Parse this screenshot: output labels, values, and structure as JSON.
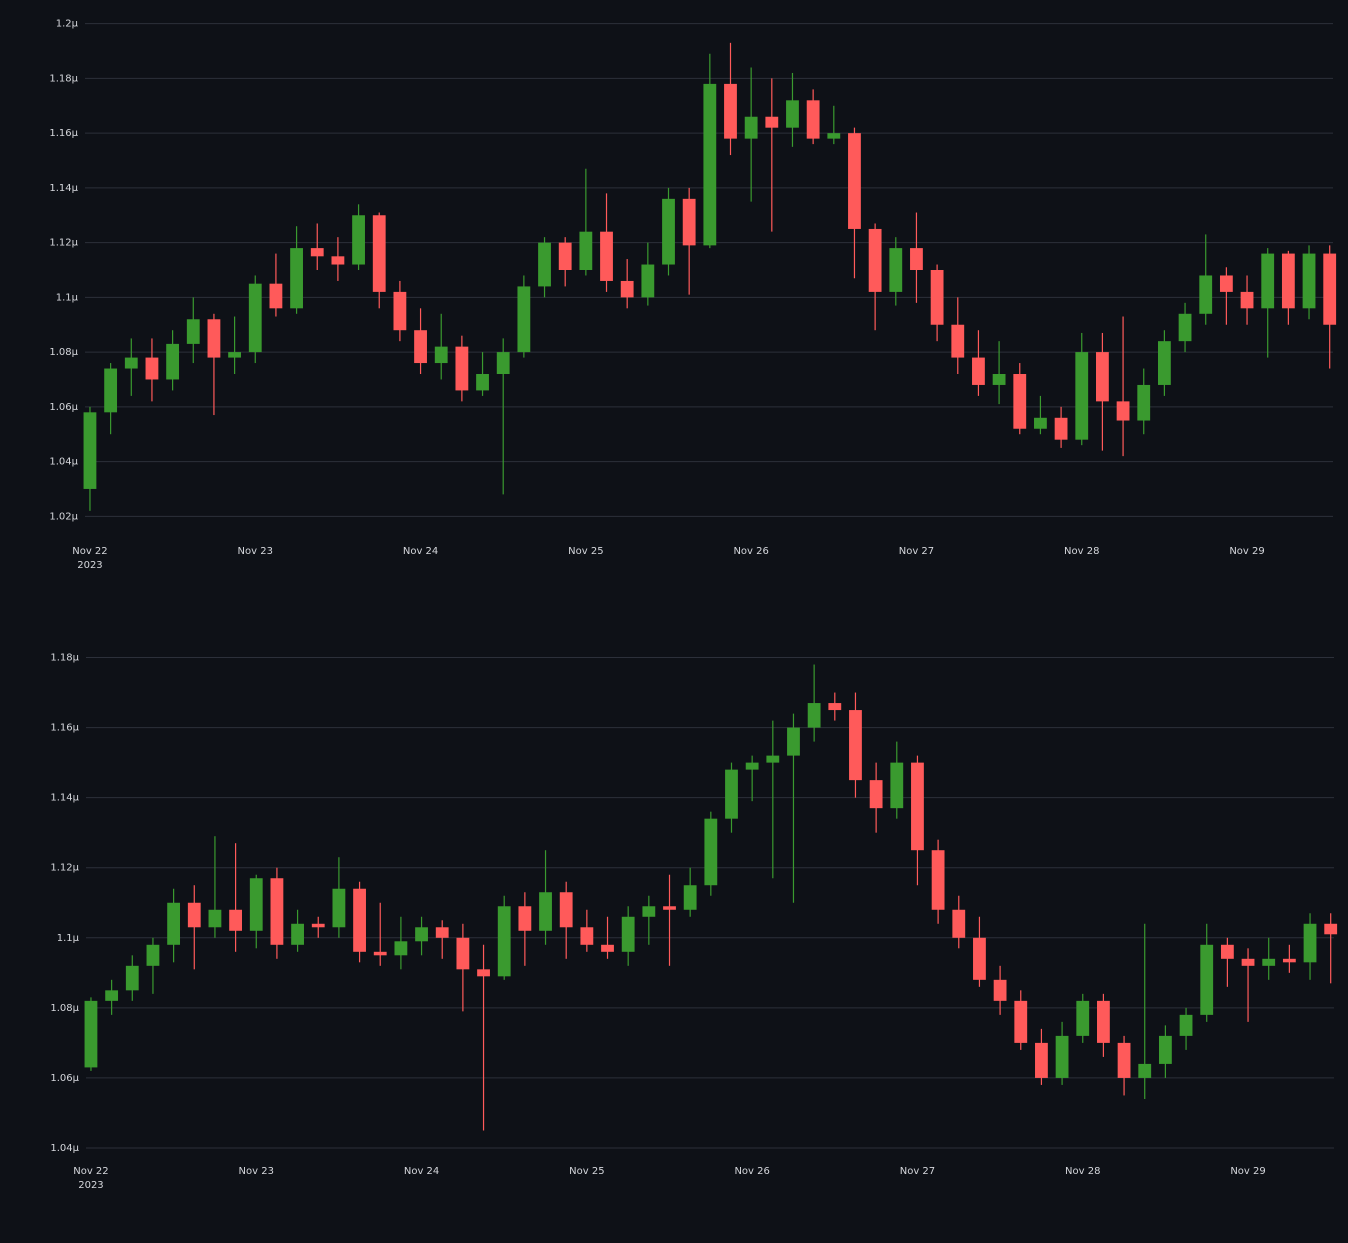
{
  "chart_data": [
    {
      "type": "candlestick",
      "x": [
        22,
        22.125,
        22.25,
        22.375,
        22.5,
        22.625,
        22.75,
        22.875,
        23,
        23.125,
        23.25,
        23.375,
        23.5,
        23.625,
        23.75,
        23.875,
        24,
        24.125,
        24.25,
        24.375,
        24.5,
        24.625,
        24.75,
        24.875,
        25,
        25.125,
        25.25,
        25.375,
        25.5,
        25.625,
        25.75,
        25.875,
        26,
        26.125,
        26.25,
        26.375,
        26.5,
        26.625,
        26.75,
        26.875,
        27,
        27.125,
        27.25,
        27.375,
        27.5,
        27.625,
        27.75,
        27.875,
        28,
        28.125,
        28.25,
        28.375,
        28.5,
        28.625,
        28.75,
        28.875,
        29,
        29.125,
        29.25,
        29.375,
        29.5
      ],
      "open": [
        1.03,
        1.058,
        1.074,
        1.078,
        1.07,
        1.083,
        1.092,
        1.078,
        1.08,
        1.105,
        1.096,
        1.118,
        1.115,
        1.112,
        1.13,
        1.102,
        1.088,
        1.076,
        1.082,
        1.066,
        1.072,
        1.08,
        1.104,
        1.12,
        1.11,
        1.124,
        1.106,
        1.1,
        1.112,
        1.136,
        1.119,
        1.178,
        1.158,
        1.166,
        1.162,
        1.172,
        1.158,
        1.16,
        1.125,
        1.102,
        1.118,
        1.11,
        1.09,
        1.078,
        1.068,
        1.072,
        1.052,
        1.056,
        1.048,
        1.08,
        1.062,
        1.055,
        1.068,
        1.084,
        1.094,
        1.108,
        1.102,
        1.096,
        1.116,
        1.096,
        1.116
      ],
      "high": [
        1.06,
        1.076,
        1.085,
        1.085,
        1.088,
        1.1,
        1.094,
        1.093,
        1.108,
        1.116,
        1.126,
        1.127,
        1.122,
        1.134,
        1.131,
        1.106,
        1.096,
        1.094,
        1.086,
        1.08,
        1.085,
        1.108,
        1.122,
        1.122,
        1.147,
        1.138,
        1.114,
        1.12,
        1.14,
        1.14,
        1.189,
        1.193,
        1.184,
        1.18,
        1.182,
        1.176,
        1.17,
        1.162,
        1.127,
        1.122,
        1.131,
        1.112,
        1.1,
        1.088,
        1.084,
        1.076,
        1.064,
        1.06,
        1.087,
        1.087,
        1.093,
        1.074,
        1.088,
        1.098,
        1.123,
        1.111,
        1.108,
        1.118,
        1.117,
        1.119,
        1.119
      ],
      "low": [
        1.022,
        1.05,
        1.064,
        1.062,
        1.066,
        1.076,
        1.057,
        1.072,
        1.076,
        1.093,
        1.094,
        1.11,
        1.106,
        1.11,
        1.096,
        1.084,
        1.072,
        1.07,
        1.062,
        1.064,
        1.028,
        1.078,
        1.1,
        1.104,
        1.108,
        1.102,
        1.096,
        1.097,
        1.108,
        1.101,
        1.118,
        1.152,
        1.135,
        1.124,
        1.155,
        1.156,
        1.156,
        1.107,
        1.088,
        1.097,
        1.098,
        1.084,
        1.072,
        1.064,
        1.061,
        1.05,
        1.05,
        1.045,
        1.046,
        1.044,
        1.042,
        1.05,
        1.064,
        1.08,
        1.09,
        1.09,
        1.09,
        1.078,
        1.09,
        1.092,
        1.074
      ],
      "close": [
        1.058,
        1.074,
        1.078,
        1.07,
        1.083,
        1.092,
        1.078,
        1.08,
        1.105,
        1.096,
        1.118,
        1.115,
        1.112,
        1.13,
        1.102,
        1.088,
        1.076,
        1.082,
        1.066,
        1.072,
        1.08,
        1.104,
        1.12,
        1.11,
        1.124,
        1.106,
        1.1,
        1.112,
        1.136,
        1.119,
        1.178,
        1.158,
        1.166,
        1.162,
        1.172,
        1.158,
        1.16,
        1.125,
        1.102,
        1.118,
        1.11,
        1.09,
        1.078,
        1.068,
        1.072,
        1.052,
        1.056,
        1.048,
        1.08,
        1.062,
        1.055,
        1.068,
        1.084,
        1.094,
        1.108,
        1.102,
        1.096,
        1.116,
        1.096,
        1.116,
        1.09
      ],
      "increasing_color": "#3a9a2f",
      "decreasing_color": "#ff5a5a",
      "xlim": [
        21.97,
        29.52
      ],
      "ylim": [
        1.015,
        1.205
      ],
      "xticks": [
        {
          "value": 22,
          "label": "Nov 22"
        },
        {
          "value": 23,
          "label": "Nov 23"
        },
        {
          "value": 24,
          "label": "Nov 24"
        },
        {
          "value": 25,
          "label": "Nov 25"
        },
        {
          "value": 26,
          "label": "Nov 26"
        },
        {
          "value": 27,
          "label": "Nov 27"
        },
        {
          "value": 28,
          "label": "Nov 28"
        },
        {
          "value": 29,
          "label": "Nov 29"
        }
      ],
      "x_year_label": "2023",
      "yticks": [
        {
          "value": 1.02,
          "label": "1.02μ"
        },
        {
          "value": 1.04,
          "label": "1.04μ"
        },
        {
          "value": 1.06,
          "label": "1.06μ"
        },
        {
          "value": 1.08,
          "label": "1.08μ"
        },
        {
          "value": 1.1,
          "label": "1.1μ"
        },
        {
          "value": 1.12,
          "label": "1.12μ"
        },
        {
          "value": 1.14,
          "label": "1.14μ"
        },
        {
          "value": 1.16,
          "label": "1.16μ"
        },
        {
          "value": 1.18,
          "label": "1.18μ"
        },
        {
          "value": 1.2,
          "label": "1.2μ"
        }
      ],
      "grid": true
    },
    {
      "type": "candlestick",
      "x": [
        22,
        22.125,
        22.25,
        22.375,
        22.5,
        22.625,
        22.75,
        22.875,
        23,
        23.125,
        23.25,
        23.375,
        23.5,
        23.625,
        23.75,
        23.875,
        24,
        24.125,
        24.25,
        24.375,
        24.5,
        24.625,
        24.75,
        24.875,
        25,
        25.125,
        25.25,
        25.375,
        25.5,
        25.625,
        25.75,
        25.875,
        26,
        26.125,
        26.25,
        26.375,
        26.5,
        26.625,
        26.75,
        26.875,
        27,
        27.125,
        27.25,
        27.375,
        27.5,
        27.625,
        27.75,
        27.875,
        28,
        28.125,
        28.25,
        28.375,
        28.5,
        28.625,
        28.75,
        28.875,
        29,
        29.125,
        29.25,
        29.375,
        29.5
      ],
      "open": [
        1.063,
        1.082,
        1.085,
        1.092,
        1.098,
        1.11,
        1.103,
        1.108,
        1.102,
        1.117,
        1.098,
        1.104,
        1.103,
        1.114,
        1.096,
        1.095,
        1.099,
        1.103,
        1.1,
        1.091,
        1.089,
        1.109,
        1.102,
        1.113,
        1.103,
        1.098,
        1.096,
        1.106,
        1.109,
        1.108,
        1.115,
        1.134,
        1.148,
        1.15,
        1.152,
        1.16,
        1.167,
        1.165,
        1.145,
        1.137,
        1.15,
        1.125,
        1.108,
        1.1,
        1.088,
        1.082,
        1.07,
        1.06,
        1.072,
        1.082,
        1.07,
        1.06,
        1.064,
        1.072,
        1.078,
        1.098,
        1.094,
        1.092,
        1.094,
        1.093,
        1.104
      ],
      "high": [
        1.083,
        1.088,
        1.095,
        1.1,
        1.114,
        1.115,
        1.129,
        1.127,
        1.118,
        1.12,
        1.108,
        1.106,
        1.123,
        1.116,
        1.11,
        1.106,
        1.106,
        1.105,
        1.104,
        1.098,
        1.112,
        1.113,
        1.125,
        1.116,
        1.108,
        1.106,
        1.109,
        1.112,
        1.118,
        1.12,
        1.136,
        1.15,
        1.152,
        1.162,
        1.164,
        1.178,
        1.17,
        1.17,
        1.15,
        1.156,
        1.152,
        1.128,
        1.112,
        1.106,
        1.092,
        1.085,
        1.074,
        1.076,
        1.084,
        1.084,
        1.072,
        1.104,
        1.075,
        1.08,
        1.104,
        1.1,
        1.097,
        1.1,
        1.098,
        1.107,
        1.107
      ],
      "low": [
        1.062,
        1.078,
        1.082,
        1.084,
        1.093,
        1.091,
        1.1,
        1.096,
        1.097,
        1.094,
        1.096,
        1.1,
        1.1,
        1.093,
        1.092,
        1.091,
        1.095,
        1.094,
        1.079,
        1.045,
        1.088,
        1.092,
        1.098,
        1.094,
        1.096,
        1.094,
        1.092,
        1.098,
        1.092,
        1.106,
        1.112,
        1.13,
        1.139,
        1.117,
        1.11,
        1.156,
        1.162,
        1.14,
        1.13,
        1.134,
        1.115,
        1.104,
        1.097,
        1.086,
        1.078,
        1.068,
        1.058,
        1.058,
        1.07,
        1.066,
        1.055,
        1.054,
        1.06,
        1.068,
        1.076,
        1.086,
        1.076,
        1.088,
        1.09,
        1.088,
        1.087
      ],
      "close": [
        1.082,
        1.085,
        1.092,
        1.098,
        1.11,
        1.103,
        1.108,
        1.102,
        1.117,
        1.098,
        1.104,
        1.103,
        1.114,
        1.096,
        1.095,
        1.099,
        1.103,
        1.1,
        1.091,
        1.089,
        1.109,
        1.102,
        1.113,
        1.103,
        1.098,
        1.096,
        1.106,
        1.109,
        1.108,
        1.115,
        1.134,
        1.148,
        1.15,
        1.152,
        1.16,
        1.167,
        1.165,
        1.145,
        1.137,
        1.15,
        1.125,
        1.108,
        1.1,
        1.088,
        1.082,
        1.07,
        1.06,
        1.072,
        1.082,
        1.07,
        1.06,
        1.064,
        1.072,
        1.078,
        1.098,
        1.094,
        1.092,
        1.094,
        1.093,
        1.104,
        1.101
      ],
      "increasing_color": "#3a9a2f",
      "decreasing_color": "#ff5a5a",
      "xlim": [
        21.97,
        29.52
      ],
      "ylim": [
        1.038,
        1.185
      ],
      "xticks": [
        {
          "value": 22,
          "label": "Nov 22"
        },
        {
          "value": 23,
          "label": "Nov 23"
        },
        {
          "value": 24,
          "label": "Nov 24"
        },
        {
          "value": 25,
          "label": "Nov 25"
        },
        {
          "value": 26,
          "label": "Nov 26"
        },
        {
          "value": 27,
          "label": "Nov 27"
        },
        {
          "value": 28,
          "label": "Nov 28"
        },
        {
          "value": 29,
          "label": "Nov 29"
        }
      ],
      "x_year_label": "2023",
      "yticks": [
        {
          "value": 1.04,
          "label": "1.04μ"
        },
        {
          "value": 1.06,
          "label": "1.06μ"
        },
        {
          "value": 1.08,
          "label": "1.08μ"
        },
        {
          "value": 1.1,
          "label": "1.1μ"
        },
        {
          "value": 1.12,
          "label": "1.12μ"
        },
        {
          "value": 1.14,
          "label": "1.14μ"
        },
        {
          "value": 1.16,
          "label": "1.16μ"
        },
        {
          "value": 1.18,
          "label": "1.18μ"
        }
      ],
      "grid": true
    }
  ]
}
